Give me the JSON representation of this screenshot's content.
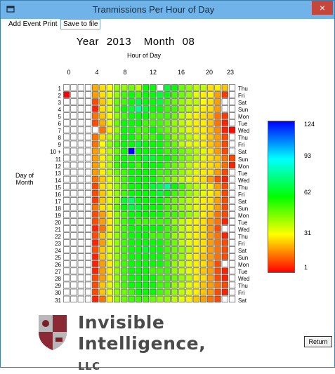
{
  "window": {
    "title": "Tranmissions Per Hour of Day",
    "close_label": "×"
  },
  "menu": {
    "items": [
      "Add Event",
      "Print",
      "Save to file"
    ]
  },
  "heading": {
    "year_label": "Year",
    "year": "2013",
    "month_label": "Month",
    "month": "08"
  },
  "xaxis": {
    "title": "Hour of Day",
    "ticks": [
      "0",
      "4",
      "8",
      "12",
      "16",
      "20",
      "23"
    ]
  },
  "yaxis": {
    "title_line1": "Day of",
    "title_line2": "Month",
    "marked_row": "10 +"
  },
  "days": [
    "1",
    "2",
    "3",
    "4",
    "5",
    "6",
    "7",
    "8",
    "9",
    "10 +",
    "11",
    "12",
    "13",
    "14",
    "15",
    "16",
    "17",
    "18",
    "19",
    "20",
    "21",
    "22",
    "23",
    "24",
    "25",
    "26",
    "27",
    "28",
    "29",
    "30",
    "31"
  ],
  "weekdays": [
    "Thu",
    "Fri",
    "Sat",
    "Sun",
    "Mon",
    "Tue",
    "Wed",
    "Thu",
    "Fri",
    "Sat",
    "Sun",
    "Mon",
    "Tue",
    "Wed",
    "Thu",
    "Fri",
    "Sat",
    "Sun",
    "Mon",
    "Tue",
    "Wed",
    "Thu",
    "Fri",
    "Sat",
    "Sun",
    "Mon",
    "Tue",
    "Wed",
    "Thu",
    "Fri",
    "Sat"
  ],
  "legend": {
    "ticks": [
      "124",
      "93",
      "62",
      "31",
      "1"
    ],
    "min": 1,
    "max": 124,
    "colors": [
      "#0000ff",
      "#00ffff",
      "#00ff00",
      "#ffff00",
      "#ff0000"
    ]
  },
  "logo": {
    "line1": "Invisible",
    "line2": "Intelligence,",
    "suffix": "LLC"
  },
  "buttons": {
    "return": "Return"
  },
  "chart_data": {
    "type": "heatmap",
    "title": "Year 2013 Month 08",
    "xlabel": "Hour of Day",
    "ylabel": "Day of Month",
    "x": [
      0,
      1,
      2,
      3,
      4,
      5,
      6,
      7,
      8,
      9,
      10,
      11,
      12,
      13,
      14,
      15,
      16,
      17,
      18,
      19,
      20,
      21,
      22,
      23
    ],
    "y": [
      1,
      2,
      3,
      4,
      5,
      6,
      7,
      8,
      9,
      10,
      11,
      12,
      13,
      14,
      15,
      16,
      17,
      18,
      19,
      20,
      21,
      22,
      23,
      24,
      25,
      26,
      27,
      28,
      29,
      30,
      31
    ],
    "scale": [
      1,
      124
    ],
    "values": [
      [
        0,
        0,
        0,
        0,
        22,
        28,
        32,
        45,
        45,
        50,
        40,
        62,
        62,
        0,
        68,
        62,
        50,
        45,
        40,
        40,
        28,
        30,
        25,
        0
      ],
      [
        1,
        0,
        0,
        0,
        20,
        28,
        35,
        45,
        55,
        62,
        55,
        62,
        62,
        68,
        62,
        55,
        50,
        45,
        35,
        30,
        30,
        20,
        8,
        0
      ],
      [
        0,
        0,
        0,
        0,
        10,
        25,
        35,
        50,
        55,
        62,
        70,
        62,
        62,
        68,
        55,
        50,
        45,
        40,
        40,
        32,
        28,
        20,
        0,
        0
      ],
      [
        0,
        0,
        0,
        0,
        5,
        28,
        35,
        50,
        62,
        68,
        80,
        68,
        62,
        62,
        55,
        55,
        45,
        40,
        35,
        30,
        28,
        20,
        0,
        0
      ],
      [
        0,
        0,
        0,
        0,
        15,
        25,
        32,
        45,
        55,
        62,
        62,
        62,
        55,
        55,
        55,
        50,
        40,
        35,
        30,
        28,
        25,
        15,
        8,
        0
      ],
      [
        0,
        0,
        0,
        0,
        10,
        22,
        35,
        50,
        62,
        62,
        62,
        55,
        55,
        55,
        50,
        45,
        40,
        35,
        30,
        30,
        25,
        15,
        5,
        0
      ],
      [
        0,
        0,
        0,
        0,
        0,
        15,
        30,
        45,
        62,
        62,
        55,
        55,
        62,
        55,
        50,
        45,
        40,
        35,
        30,
        30,
        25,
        18,
        5,
        2
      ],
      [
        0,
        0,
        0,
        0,
        15,
        28,
        40,
        50,
        62,
        62,
        55,
        55,
        55,
        62,
        55,
        45,
        45,
        40,
        35,
        30,
        25,
        20,
        10,
        0
      ],
      [
        0,
        0,
        0,
        0,
        15,
        32,
        45,
        55,
        62,
        62,
        68,
        62,
        62,
        62,
        55,
        50,
        40,
        35,
        35,
        30,
        25,
        20,
        10,
        0
      ],
      [
        0,
        0,
        0,
        0,
        20,
        30,
        40,
        50,
        62,
        124,
        62,
        62,
        62,
        62,
        55,
        55,
        50,
        45,
        40,
        35,
        28,
        20,
        10,
        0
      ],
      [
        0,
        0,
        0,
        0,
        20,
        30,
        40,
        55,
        62,
        62,
        62,
        68,
        68,
        62,
        62,
        55,
        50,
        45,
        40,
        35,
        28,
        25,
        15,
        10
      ],
      [
        0,
        0,
        0,
        0,
        20,
        30,
        40,
        55,
        62,
        62,
        55,
        62,
        62,
        62,
        55,
        50,
        45,
        40,
        35,
        30,
        28,
        25,
        15,
        5
      ],
      [
        0,
        0,
        0,
        0,
        20,
        30,
        40,
        50,
        55,
        62,
        62,
        62,
        62,
        55,
        55,
        50,
        45,
        40,
        35,
        30,
        28,
        20,
        10,
        0
      ],
      [
        0,
        0,
        0,
        0,
        15,
        25,
        35,
        45,
        55,
        62,
        62,
        62,
        62,
        55,
        50,
        45,
        40,
        35,
        30,
        28,
        20,
        10,
        5,
        0
      ],
      [
        0,
        0,
        0,
        0,
        10,
        28,
        35,
        45,
        55,
        62,
        62,
        62,
        68,
        70,
        80,
        62,
        55,
        45,
        40,
        35,
        30,
        20,
        10,
        0
      ],
      [
        0,
        0,
        0,
        0,
        10,
        25,
        35,
        45,
        55,
        62,
        62,
        62,
        62,
        68,
        62,
        55,
        50,
        45,
        40,
        35,
        30,
        25,
        10,
        0
      ],
      [
        0,
        0,
        0,
        0,
        8,
        25,
        35,
        45,
        68,
        75,
        62,
        62,
        62,
        62,
        55,
        50,
        45,
        40,
        35,
        30,
        28,
        20,
        10,
        0
      ],
      [
        0,
        0,
        0,
        0,
        15,
        28,
        35,
        50,
        62,
        70,
        68,
        62,
        62,
        62,
        55,
        50,
        45,
        40,
        35,
        30,
        28,
        20,
        10,
        0
      ],
      [
        0,
        0,
        0,
        0,
        10,
        20,
        30,
        45,
        55,
        62,
        62,
        62,
        62,
        62,
        55,
        55,
        50,
        45,
        40,
        30,
        25,
        15,
        10,
        0
      ],
      [
        0,
        0,
        0,
        0,
        10,
        20,
        30,
        45,
        55,
        62,
        55,
        55,
        55,
        55,
        55,
        45,
        40,
        35,
        30,
        28,
        20,
        15,
        5,
        0
      ],
      [
        0,
        0,
        0,
        0,
        5,
        15,
        30,
        45,
        55,
        62,
        62,
        62,
        62,
        62,
        55,
        50,
        40,
        35,
        30,
        28,
        20,
        10,
        0,
        0
      ],
      [
        0,
        0,
        0,
        0,
        10,
        25,
        35,
        45,
        55,
        62,
        62,
        62,
        55,
        55,
        55,
        45,
        40,
        35,
        30,
        28,
        20,
        15,
        5,
        0
      ],
      [
        0,
        0,
        0,
        0,
        5,
        20,
        35,
        45,
        55,
        62,
        62,
        62,
        62,
        62,
        55,
        50,
        40,
        35,
        30,
        28,
        20,
        15,
        10,
        0
      ],
      [
        0,
        0,
        0,
        0,
        10,
        25,
        35,
        45,
        55,
        62,
        62,
        68,
        62,
        62,
        55,
        50,
        45,
        40,
        30,
        28,
        20,
        15,
        10,
        0
      ],
      [
        0,
        0,
        0,
        0,
        5,
        25,
        35,
        45,
        55,
        62,
        62,
        62,
        62,
        62,
        55,
        50,
        45,
        35,
        30,
        25,
        20,
        15,
        10,
        0
      ],
      [
        0,
        0,
        0,
        0,
        5,
        20,
        30,
        45,
        55,
        62,
        62,
        62,
        62,
        62,
        55,
        45,
        40,
        35,
        30,
        28,
        20,
        10,
        0,
        0
      ],
      [
        0,
        0,
        0,
        0,
        5,
        20,
        30,
        45,
        55,
        62,
        62,
        62,
        55,
        55,
        55,
        45,
        40,
        35,
        30,
        25,
        20,
        10,
        5,
        0
      ],
      [
        0,
        0,
        0,
        0,
        10,
        20,
        30,
        45,
        55,
        62,
        62,
        62,
        62,
        55,
        55,
        50,
        45,
        40,
        30,
        28,
        20,
        10,
        5,
        0
      ],
      [
        0,
        0,
        0,
        0,
        10,
        25,
        35,
        45,
        55,
        62,
        62,
        62,
        62,
        55,
        55,
        45,
        40,
        35,
        30,
        25,
        20,
        15,
        10,
        0
      ],
      [
        0,
        0,
        0,
        0,
        10,
        25,
        35,
        45,
        50,
        55,
        62,
        62,
        62,
        55,
        50,
        45,
        40,
        35,
        30,
        25,
        20,
        10,
        5,
        0
      ],
      [
        0,
        0,
        0,
        0,
        5,
        15,
        30,
        45,
        50,
        55,
        55,
        55,
        50,
        45,
        45,
        40,
        35,
        30,
        25,
        20,
        15,
        10,
        0,
        0
      ]
    ]
  }
}
